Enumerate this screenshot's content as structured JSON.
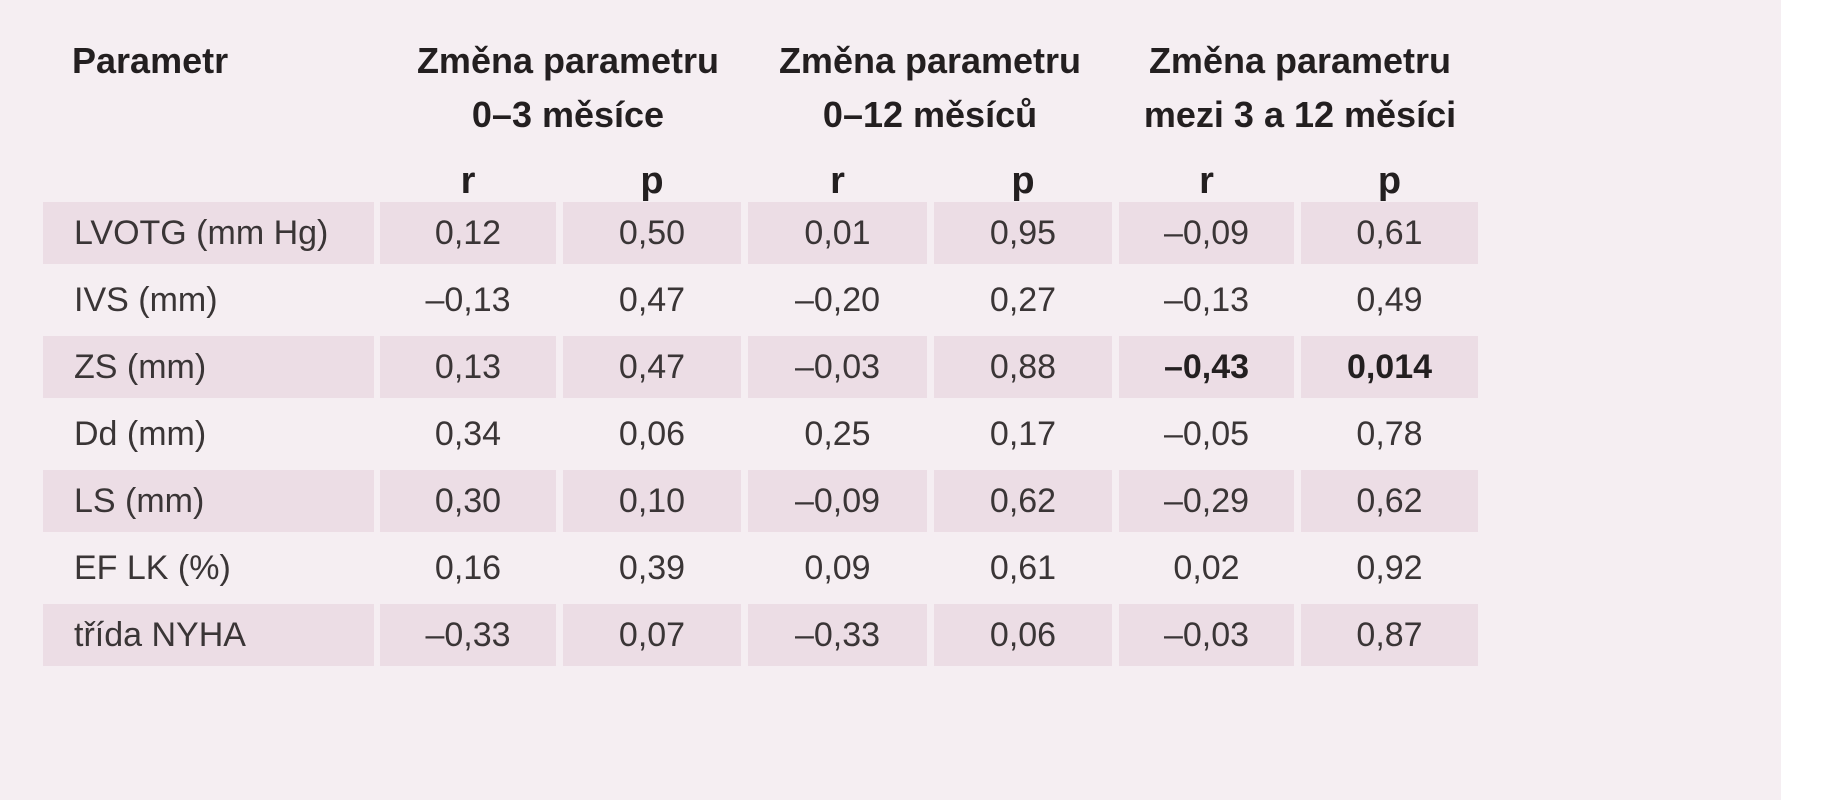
{
  "table": {
    "header": {
      "parameter": "Parametr",
      "groups": [
        {
          "line1": "Změna parametru",
          "line2": "0–3 měsíce"
        },
        {
          "line1": "Změna parametru",
          "line2": "0–12 měsíců"
        },
        {
          "line1": "Změna parametru",
          "line2": "mezi 3 a 12 měsíci"
        }
      ],
      "subheaders": [
        "r",
        "p",
        "r",
        "p",
        "r",
        "p"
      ]
    },
    "rows": [
      {
        "label": "LVOTG (mm Hg)",
        "values": [
          "0,12",
          "0,50",
          "0,01",
          "0,95",
          "–0,09",
          "0,61"
        ]
      },
      {
        "label": "IVS (mm)",
        "values": [
          "–0,13",
          "0,47",
          "–0,20",
          "0,27",
          "–0,13",
          "0,49"
        ]
      },
      {
        "label": "ZS (mm)",
        "values": [
          "0,13",
          "0,47",
          "–0,03",
          "0,88",
          "–0,43",
          "0,014"
        ],
        "bold_columns": [
          4,
          5
        ]
      },
      {
        "label": "Dd (mm)",
        "values": [
          "0,34",
          "0,06",
          "0,25",
          "0,17",
          "–0,05",
          "0,78"
        ]
      },
      {
        "label": "LS (mm)",
        "values": [
          "0,30",
          "0,10",
          "–0,09",
          "0,62",
          "–0,29",
          "0,62"
        ]
      },
      {
        "label": "EF LK (%)",
        "values": [
          "0,16",
          "0,39",
          "0,09",
          "0,61",
          "0,02",
          "0,92"
        ]
      },
      {
        "label": "třída NYHA",
        "values": [
          "–0,33",
          "0,07",
          "–0,33",
          "0,06",
          "–0,03",
          "0,87"
        ]
      }
    ]
  },
  "colors": {
    "background": "#f5eef2",
    "shaded_cell": "#ecdde5",
    "text": "#231f20"
  }
}
